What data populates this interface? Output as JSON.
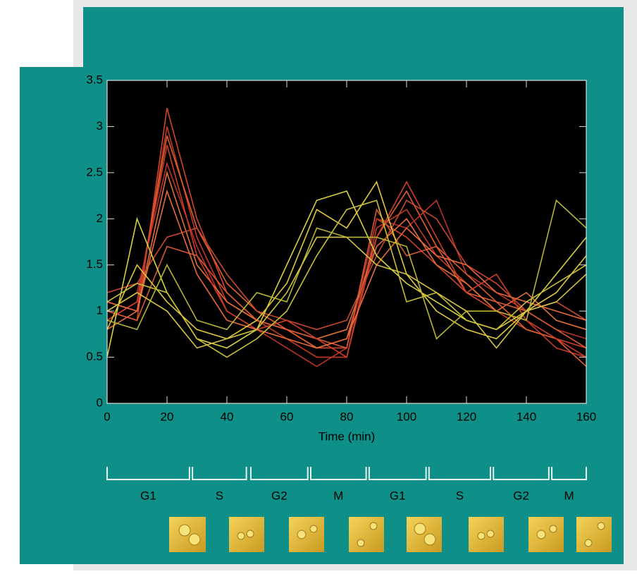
{
  "chart_data": {
    "type": "line",
    "xlabel": "Time (min)",
    "x": [
      0,
      10,
      20,
      30,
      40,
      50,
      60,
      70,
      80,
      90,
      100,
      110,
      120,
      130,
      140,
      150,
      160
    ],
    "xlim": [
      0,
      160
    ],
    "xticks": [
      0,
      20,
      40,
      60,
      80,
      100,
      120,
      140,
      160
    ],
    "ylim": [
      0,
      3.5
    ],
    "yticks": [
      0,
      0.5,
      1,
      1.5,
      2,
      2.5,
      3,
      3.5
    ],
    "series": [
      {
        "color": "#d2442c",
        "values": [
          1.0,
          0.9,
          3.2,
          2.0,
          1.2,
          0.9,
          0.8,
          0.6,
          0.6,
          2.0,
          1.8,
          1.5,
          1.2,
          1.0,
          0.8,
          0.7,
          0.6
        ]
      },
      {
        "color": "#c23a28",
        "values": [
          1.1,
          1.0,
          3.0,
          1.8,
          1.1,
          0.9,
          0.7,
          0.5,
          0.5,
          1.9,
          2.1,
          1.6,
          1.3,
          1.0,
          0.9,
          0.6,
          0.5
        ]
      },
      {
        "color": "#e0602c",
        "values": [
          0.9,
          1.1,
          2.9,
          1.9,
          1.3,
          1.0,
          0.8,
          0.6,
          0.7,
          1.8,
          2.3,
          1.7,
          1.2,
          1.1,
          0.8,
          0.7,
          0.4
        ]
      },
      {
        "color": "#b8322a",
        "values": [
          1.0,
          1.2,
          2.6,
          1.7,
          1.0,
          0.8,
          0.6,
          0.4,
          0.6,
          2.0,
          1.9,
          2.2,
          1.4,
          1.2,
          1.0,
          0.8,
          0.7
        ]
      },
      {
        "color": "#e2703a",
        "values": [
          0.8,
          1.0,
          2.5,
          1.5,
          1.1,
          0.9,
          0.8,
          0.7,
          0.8,
          1.7,
          2.0,
          1.5,
          1.3,
          1.0,
          1.2,
          0.9,
          0.8
        ]
      },
      {
        "color": "#c84830",
        "values": [
          1.2,
          1.3,
          1.8,
          1.9,
          1.4,
          1.0,
          0.9,
          0.8,
          0.9,
          1.6,
          2.2,
          2.0,
          1.5,
          1.3,
          1.0,
          1.1,
          0.9
        ]
      },
      {
        "color": "#d85a34",
        "values": [
          1.0,
          0.9,
          1.7,
          1.6,
          1.2,
          0.9,
          0.8,
          0.7,
          0.6,
          2.1,
          1.6,
          1.7,
          1.4,
          1.1,
          1.0,
          0.8,
          0.6
        ]
      },
      {
        "color": "#cc3e2a",
        "values": [
          0.9,
          1.1,
          2.8,
          1.6,
          1.0,
          0.8,
          0.9,
          0.7,
          0.5,
          1.8,
          2.4,
          1.8,
          1.2,
          1.4,
          0.9,
          0.7,
          0.5
        ]
      },
      {
        "color": "#e86a3a",
        "values": [
          1.1,
          1.0,
          2.3,
          1.4,
          0.9,
          0.8,
          0.7,
          0.6,
          0.7,
          1.5,
          1.9,
          1.6,
          1.5,
          1.2,
          1.1,
          1.0,
          0.9
        ]
      },
      {
        "color": "#d8d040",
        "values": [
          0.5,
          2.0,
          1.2,
          0.7,
          0.6,
          0.8,
          1.5,
          2.2,
          2.3,
          1.6,
          1.3,
          1.1,
          0.9,
          0.8,
          1.0,
          1.4,
          1.8
        ]
      },
      {
        "color": "#e0c83c",
        "values": [
          0.8,
          1.5,
          1.1,
          0.8,
          0.7,
          0.9,
          1.3,
          2.1,
          1.9,
          2.4,
          1.4,
          1.0,
          0.8,
          0.7,
          1.0,
          1.2,
          1.6
        ]
      },
      {
        "color": "#c8c038",
        "values": [
          1.1,
          1.3,
          1.2,
          0.7,
          0.5,
          0.7,
          1.0,
          1.6,
          2.1,
          2.2,
          1.1,
          1.2,
          0.9,
          0.8,
          1.1,
          1.3,
          1.5
        ]
      },
      {
        "color": "#b8b434",
        "values": [
          0.9,
          0.8,
          1.5,
          0.9,
          0.8,
          1.2,
          1.1,
          1.9,
          1.8,
          1.8,
          1.7,
          0.7,
          1.0,
          1.0,
          0.9,
          2.2,
          1.9
        ]
      },
      {
        "color": "#d4c444",
        "values": [
          1.0,
          1.2,
          1.0,
          0.6,
          0.7,
          0.8,
          1.2,
          1.8,
          1.8,
          1.5,
          1.4,
          1.2,
          1.0,
          0.6,
          1.0,
          1.1,
          1.4
        ]
      }
    ],
    "phases": [
      {
        "label": "G1",
        "start": 0,
        "end": 27.5
      },
      {
        "label": "S",
        "start": 28.5,
        "end": 46.5
      },
      {
        "label": "G2",
        "start": 48,
        "end": 67
      },
      {
        "label": "M",
        "start": 68,
        "end": 86.5
      },
      {
        "label": "G1",
        "start": 87.5,
        "end": 106.5
      },
      {
        "label": "S",
        "start": 107.5,
        "end": 128
      },
      {
        "label": "G2",
        "start": 129,
        "end": 147.5
      },
      {
        "label": "M",
        "start": 148.5,
        "end": 160
      }
    ]
  }
}
